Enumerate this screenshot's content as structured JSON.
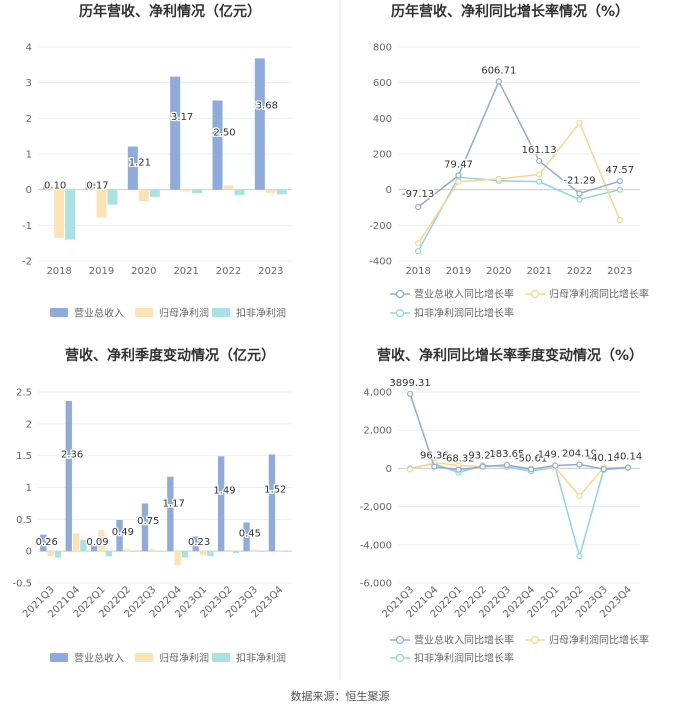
{
  "footer": "数据来源：恒生聚源",
  "colors": {
    "revenue": "#8eabdb",
    "netprofit": "#fde2b3",
    "deducted": "#a8e2e2",
    "rev_line": "#8eabdb",
    "np_line": "#fbd58f",
    "ded_line": "#8cd7de"
  },
  "chart_data": [
    {
      "id": "annual_bar",
      "type": "bar",
      "title": "历年营收、净利情况（亿元）",
      "categories": [
        "2018",
        "2019",
        "2020",
        "2021",
        "2022",
        "2023"
      ],
      "series": [
        {
          "name": "营业总收入",
          "values": [
            0.1,
            0.17,
            1.21,
            3.17,
            2.5,
            3.68
          ],
          "labels": [
            "0.10",
            "0.17",
            "1.21",
            "3.17",
            "2.50",
            "3.68"
          ]
        },
        {
          "name": "归母净利润",
          "values": [
            -1.35,
            -0.78,
            -0.32,
            -0.05,
            0.12,
            -0.09
          ]
        },
        {
          "name": "扣非净利润",
          "values": [
            -1.4,
            -0.42,
            -0.2,
            -0.1,
            -0.15,
            -0.13
          ]
        }
      ],
      "yticks": [
        "4",
        "3",
        "2",
        "1",
        "0",
        "-1",
        "-2"
      ],
      "ylim": [
        -2,
        4
      ]
    },
    {
      "id": "annual_line",
      "type": "line",
      "title": "历年营收、净利同比增长率情况（%）",
      "categories": [
        "2018",
        "2019",
        "2020",
        "2021",
        "2022",
        "2023"
      ],
      "series": [
        {
          "name": "营业总收入同比增长率",
          "values": [
            -97.13,
            79.47,
            606.71,
            161.13,
            -21.29,
            47.57
          ],
          "labels": [
            "-97.13",
            "79.47",
            "606.71",
            "161.13",
            "-21.29",
            "47.57"
          ]
        },
        {
          "name": "归母净利润同比增长率",
          "values": [
            -300,
            45,
            60,
            85,
            375,
            -170
          ]
        },
        {
          "name": "扣非净利润同比增长率",
          "values": [
            -345,
            70,
            50,
            45,
            -55,
            0
          ]
        }
      ],
      "yticks": [
        "800",
        "600",
        "400",
        "200",
        "0",
        "-200",
        "-400"
      ],
      "ylim": [
        -400,
        800
      ]
    },
    {
      "id": "quarter_bar",
      "type": "bar",
      "title": "营收、净利季度变动情况（亿元）",
      "categories": [
        "2021Q3",
        "2021Q4",
        "2022Q1",
        "2022Q2",
        "2022Q3",
        "2022Q4",
        "2023Q1",
        "2023Q2",
        "2023Q3",
        "2023Q4"
      ],
      "series": [
        {
          "name": "营业总收入",
          "values": [
            0.26,
            2.36,
            0.09,
            0.49,
            0.75,
            1.17,
            0.23,
            1.49,
            0.45,
            1.52
          ],
          "labels": [
            "0.26",
            "2.36",
            "0.09",
            "0.49",
            "0.75",
            "1.17",
            "0.23",
            "1.49",
            "0.45",
            "1.52"
          ]
        },
        {
          "name": "归母净利润",
          "values": [
            -0.08,
            0.28,
            0.33,
            0.03,
            0.03,
            -0.22,
            -0.06,
            0.02,
            0.03,
            0.0
          ]
        },
        {
          "name": "扣非净利润",
          "values": [
            -0.1,
            0.18,
            -0.08,
            0.0,
            0.0,
            -0.1,
            -0.08,
            -0.03,
            0.0,
            0.0
          ]
        }
      ],
      "yticks": [
        "2.5",
        "2",
        "1.5",
        "1",
        "0.5",
        "0",
        "-0.5"
      ],
      "ylim": [
        -0.5,
        2.5
      ]
    },
    {
      "id": "quarter_line",
      "type": "line",
      "title": "营收、净利同比增长率季度变动情况（%）",
      "categories": [
        "2021Q3",
        "2021Q4",
        "2022Q1",
        "2022Q2",
        "2022Q3",
        "2022Q4",
        "2023Q1",
        "2023Q2",
        "2023Q3",
        "2023Q4"
      ],
      "series": [
        {
          "name": "营业总收入同比增长率",
          "values": [
            3899.31,
            96.36,
            -68.32,
            93.26,
            183.65,
            -50.61,
            149.78,
            204.19,
            -40.16,
            40.14
          ],
          "labels": [
            "3899.31",
            "96.36",
            "-68.32",
            "93.26",
            "183.65",
            "-50.61",
            "149.78",
            "204.19",
            "-40.16",
            "40.14"
          ]
        },
        {
          "name": "归母净利润同比增长率",
          "values": [
            -50,
            300,
            150,
            100,
            150,
            0,
            50,
            -1450,
            50,
            30
          ]
        },
        {
          "name": "扣非净利润同比增长率",
          "values": [
            0,
            250,
            -220,
            150,
            80,
            -150,
            50,
            -4600,
            -80,
            50
          ]
        }
      ],
      "yticks": [
        "4,000",
        "2,000",
        "0",
        "-2,000",
        "-4,000",
        "-6,000"
      ],
      "ylim": [
        -6000,
        4000
      ]
    }
  ]
}
